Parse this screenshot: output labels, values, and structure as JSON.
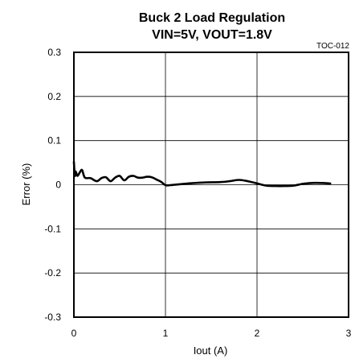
{
  "chart_data": {
    "type": "line",
    "title_line1": "Buck 2 Load Regulation",
    "title_line2": "VIN=5V, VOUT=1.8V",
    "code": "TOC-012",
    "xlabel": "Iout (A)",
    "ylabel": "Error (%)",
    "xlim": [
      0,
      3
    ],
    "ylim": [
      -0.3,
      0.3
    ],
    "xticks": [
      0,
      1,
      2,
      3
    ],
    "xtick_labels": [
      "0",
      "1",
      "2",
      "3"
    ],
    "yticks": [
      0.3,
      0.2,
      0.1,
      0,
      -0.1,
      -0.2,
      -0.3
    ],
    "ytick_labels": [
      "0.3",
      "0.2",
      "0.1",
      "0",
      "-0.1",
      "-0.2",
      "-0.3"
    ],
    "grid": true,
    "series": [
      {
        "x": [
          0.0,
          0.01,
          0.02,
          0.04,
          0.07,
          0.09,
          0.12,
          0.18,
          0.25,
          0.3,
          0.35,
          0.4,
          0.45,
          0.5,
          0.55,
          0.6,
          0.65,
          0.7,
          0.75,
          0.8,
          0.85,
          0.9,
          0.95,
          1.0,
          1.05,
          1.1,
          1.2,
          1.4,
          1.6,
          1.7,
          1.8,
          1.9,
          2.0,
          2.1,
          2.2,
          2.3,
          2.4,
          2.5,
          2.6,
          2.7,
          2.8
        ],
        "y": [
          0.052,
          0.02,
          0.03,
          0.02,
          0.03,
          0.033,
          0.016,
          0.015,
          0.008,
          0.015,
          0.017,
          0.008,
          0.016,
          0.02,
          0.01,
          0.018,
          0.02,
          0.016,
          0.016,
          0.018,
          0.017,
          0.012,
          0.007,
          -0.001,
          -0.001,
          0.0,
          0.002,
          0.005,
          0.006,
          0.008,
          0.011,
          0.008,
          0.003,
          -0.002,
          -0.003,
          -0.003,
          -0.002,
          0.002,
          0.004,
          0.004,
          0.003
        ]
      }
    ]
  }
}
